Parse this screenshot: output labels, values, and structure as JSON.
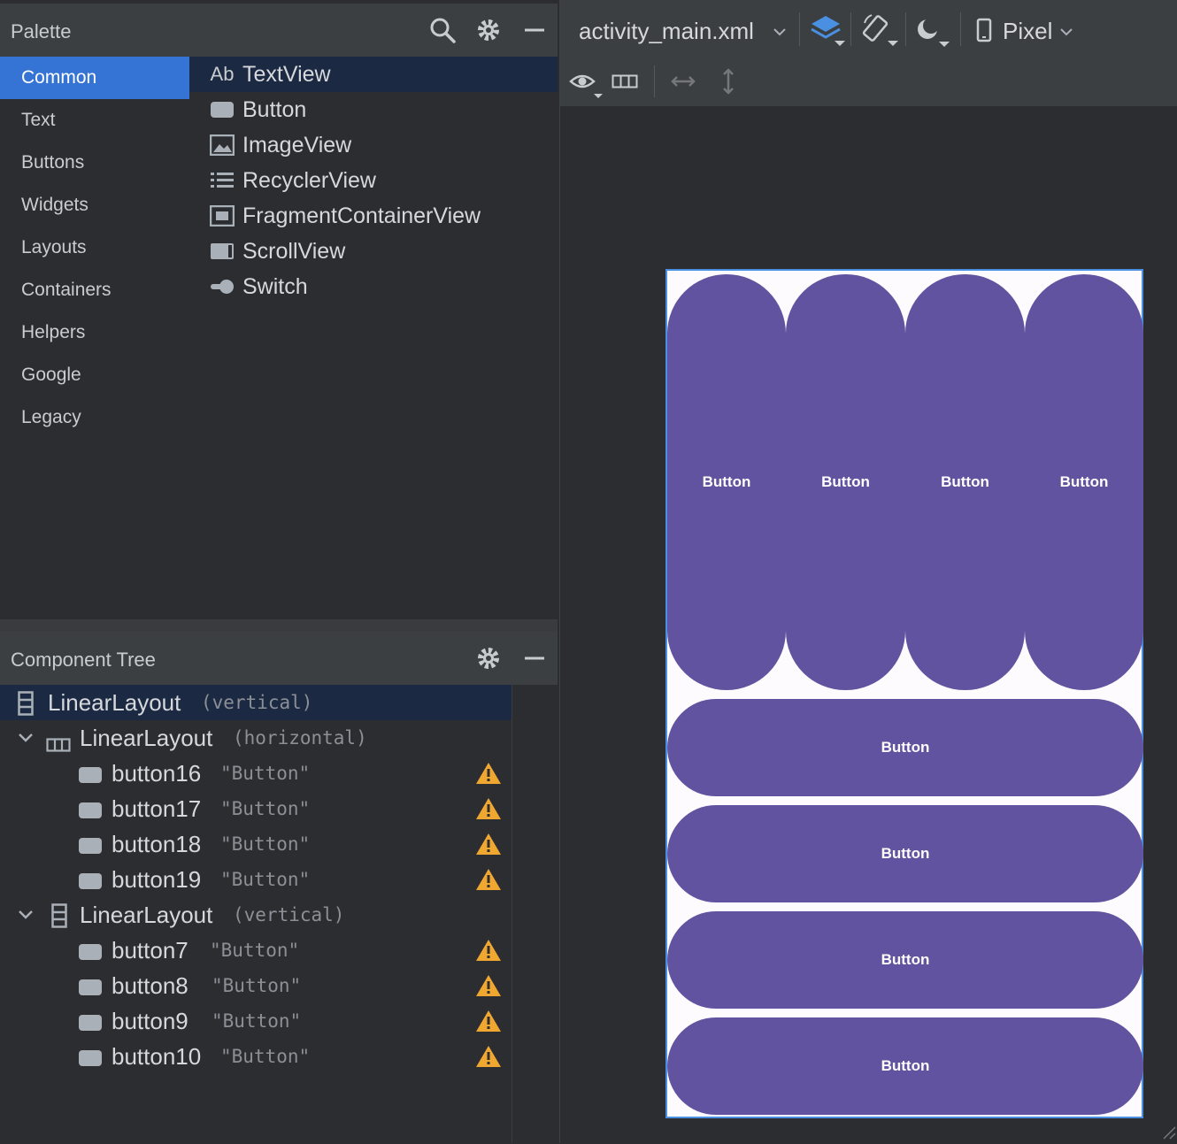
{
  "palette": {
    "title": "Palette",
    "categories": [
      "Common",
      "Text",
      "Buttons",
      "Widgets",
      "Layouts",
      "Containers",
      "Helpers",
      "Google",
      "Legacy"
    ],
    "selected_category": "Common",
    "components": [
      {
        "label": "TextView",
        "icon": "textview-icon",
        "glyph": "Ab"
      },
      {
        "label": "Button",
        "icon": "button-icon"
      },
      {
        "label": "ImageView",
        "icon": "imageview-icon"
      },
      {
        "label": "RecyclerView",
        "icon": "recyclerview-icon"
      },
      {
        "label": "FragmentContainerView",
        "icon": "fragment-container-icon"
      },
      {
        "label": "ScrollView",
        "icon": "scrollview-icon"
      },
      {
        "label": "Switch",
        "icon": "switch-icon"
      }
    ]
  },
  "component_tree": {
    "title": "Component Tree",
    "root": {
      "label": "LinearLayout",
      "sub": "(vertical)"
    },
    "group1": {
      "label": "LinearLayout",
      "sub": "(horizontal)"
    },
    "group1_items": [
      {
        "id": "button16",
        "text": "\"Button\""
      },
      {
        "id": "button17",
        "text": "\"Button\""
      },
      {
        "id": "button18",
        "text": "\"Button\""
      },
      {
        "id": "button19",
        "text": "\"Button\""
      }
    ],
    "group2": {
      "label": "LinearLayout",
      "sub": "(vertical)"
    },
    "group2_items": [
      {
        "id": "button7",
        "text": "\"Button\""
      },
      {
        "id": "button8",
        "text": "\"Button\""
      },
      {
        "id": "button9",
        "text": "\"Button\""
      },
      {
        "id": "button10",
        "text": "\"Button\""
      }
    ]
  },
  "editor": {
    "file_name": "activity_main.xml",
    "device": "Pixel"
  },
  "preview": {
    "top_buttons": [
      "Button",
      "Button",
      "Button",
      "Button"
    ],
    "bottom_buttons": [
      "Button",
      "Button",
      "Button",
      "Button"
    ]
  },
  "colors": {
    "accent": "#3574d4",
    "button_fill": "#6153a0",
    "warning": "#f0a732",
    "selection": "#1b2a42"
  }
}
